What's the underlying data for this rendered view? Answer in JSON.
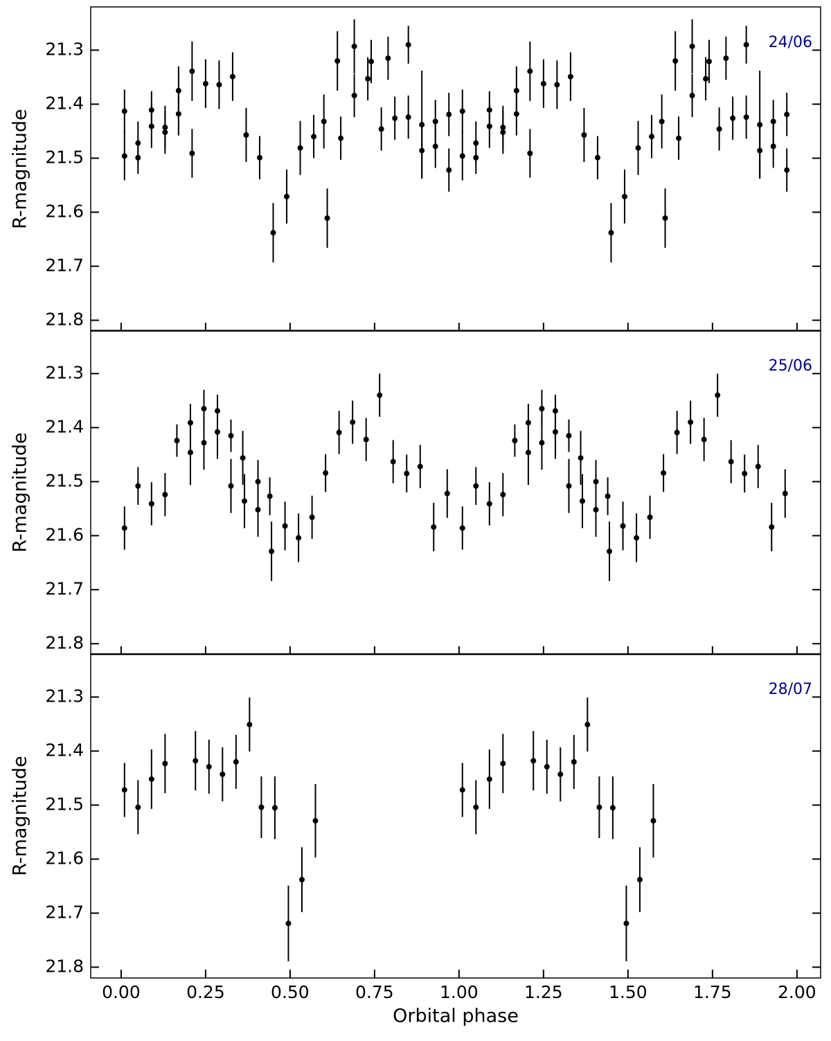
{
  "chart_data": [
    {
      "type": "scatter",
      "title": "24/06",
      "ylabel": "R-magnitude",
      "color": "#000000",
      "title_color": "#00008b",
      "xlim": [
        -0.09,
        2.07
      ],
      "ylim": [
        21.22,
        21.82
      ],
      "yticks": [
        21.3,
        21.4,
        21.5,
        21.6,
        21.7,
        21.8
      ],
      "y_inverted": true,
      "x": [
        0.01,
        0.01,
        0.05,
        0.05,
        0.09,
        0.09,
        0.13,
        0.13,
        0.17,
        0.17,
        0.21,
        0.21,
        0.25,
        0.29,
        0.33,
        0.37,
        0.41,
        0.45,
        0.49,
        0.53,
        0.57,
        0.6,
        0.61,
        0.64,
        0.65,
        0.69,
        0.69,
        0.73,
        0.74,
        0.77,
        0.79,
        0.81,
        0.85,
        0.85,
        0.89,
        0.89,
        0.93,
        0.93,
        0.97,
        0.97,
        1.01,
        1.01,
        1.05,
        1.05,
        1.09,
        1.09,
        1.13,
        1.13,
        1.17,
        1.17,
        1.21,
        1.21,
        1.25,
        1.29,
        1.33,
        1.37,
        1.41,
        1.45,
        1.49,
        1.53,
        1.57,
        1.6,
        1.61,
        1.64,
        1.65,
        1.69,
        1.69,
        1.73,
        1.74,
        1.77,
        1.79,
        1.81,
        1.85,
        1.85,
        1.89,
        1.89,
        1.93,
        1.93,
        1.97,
        1.97
      ],
      "values": [
        21.496,
        21.413,
        21.499,
        21.472,
        21.441,
        21.411,
        21.443,
        21.452,
        21.375,
        21.418,
        21.339,
        21.491,
        21.362,
        21.364,
        21.349,
        21.457,
        21.499,
        21.638,
        21.571,
        21.481,
        21.46,
        21.432,
        21.611,
        21.32,
        21.463,
        21.293,
        21.384,
        21.353,
        21.321,
        21.446,
        21.315,
        21.426,
        21.29,
        21.424,
        21.438,
        21.486,
        21.432,
        21.478,
        21.419,
        21.522,
        21.496,
        21.413,
        21.499,
        21.472,
        21.441,
        21.411,
        21.443,
        21.452,
        21.375,
        21.418,
        21.339,
        21.491,
        21.362,
        21.364,
        21.349,
        21.457,
        21.499,
        21.638,
        21.571,
        21.481,
        21.46,
        21.432,
        21.611,
        21.32,
        21.463,
        21.293,
        21.384,
        21.353,
        21.321,
        21.446,
        21.315,
        21.426,
        21.29,
        21.424,
        21.438,
        21.486,
        21.432,
        21.478,
        21.419,
        21.522
      ],
      "errors": [
        0.045,
        0.04,
        0.03,
        0.04,
        0.04,
        0.035,
        0.04,
        0.04,
        0.045,
        0.04,
        0.055,
        0.045,
        0.045,
        0.045,
        0.045,
        0.05,
        0.04,
        0.055,
        0.05,
        0.05,
        0.04,
        0.05,
        0.055,
        0.055,
        0.04,
        0.05,
        0.04,
        0.04,
        0.04,
        0.04,
        0.04,
        0.04,
        0.035,
        0.04,
        0.1,
        0.05,
        0.04,
        0.04,
        0.04,
        0.04,
        0.045,
        0.04,
        0.03,
        0.04,
        0.04,
        0.035,
        0.04,
        0.04,
        0.045,
        0.04,
        0.055,
        0.045,
        0.045,
        0.045,
        0.045,
        0.05,
        0.04,
        0.055,
        0.05,
        0.05,
        0.04,
        0.05,
        0.055,
        0.055,
        0.04,
        0.05,
        0.04,
        0.04,
        0.04,
        0.04,
        0.04,
        0.04,
        0.035,
        0.04,
        0.1,
        0.05,
        0.04,
        0.04,
        0.04,
        0.04
      ]
    },
    {
      "type": "scatter",
      "title": "25/06",
      "ylabel": "R-magnitude",
      "color": "#000000",
      "title_color": "#00008b",
      "xlim": [
        -0.09,
        2.07
      ],
      "ylim": [
        21.22,
        21.82
      ],
      "yticks": [
        21.3,
        21.4,
        21.5,
        21.6,
        21.7,
        21.8
      ],
      "y_inverted": true,
      "x": [
        0.01,
        0.05,
        0.09,
        0.13,
        0.165,
        0.205,
        0.205,
        0.245,
        0.245,
        0.285,
        0.285,
        0.325,
        0.325,
        0.36,
        0.365,
        0.405,
        0.405,
        0.44,
        0.445,
        0.485,
        0.525,
        0.565,
        0.605,
        0.645,
        0.685,
        0.725,
        0.765,
        0.805,
        0.845,
        0.885,
        0.925,
        0.965,
        1.01,
        1.05,
        1.09,
        1.13,
        1.165,
        1.205,
        1.205,
        1.245,
        1.245,
        1.285,
        1.285,
        1.325,
        1.325,
        1.36,
        1.365,
        1.405,
        1.405,
        1.44,
        1.445,
        1.485,
        1.525,
        1.565,
        1.605,
        1.645,
        1.685,
        1.725,
        1.765,
        1.805,
        1.845,
        1.885,
        1.925,
        1.965
      ],
      "values": [
        21.586,
        21.508,
        21.541,
        21.524,
        21.424,
        21.391,
        21.446,
        21.365,
        21.428,
        21.369,
        21.408,
        21.415,
        21.508,
        21.456,
        21.536,
        21.5,
        21.552,
        21.527,
        21.629,
        21.582,
        21.604,
        21.566,
        21.484,
        21.409,
        21.39,
        21.422,
        21.34,
        21.463,
        21.485,
        21.472,
        21.584,
        21.522,
        21.586,
        21.508,
        21.541,
        21.524,
        21.424,
        21.391,
        21.446,
        21.365,
        21.428,
        21.369,
        21.408,
        21.415,
        21.508,
        21.456,
        21.536,
        21.5,
        21.552,
        21.527,
        21.629,
        21.582,
        21.604,
        21.566,
        21.484,
        21.409,
        21.39,
        21.422,
        21.34,
        21.463,
        21.485,
        21.472,
        21.584,
        21.522
      ],
      "errors": [
        0.04,
        0.035,
        0.04,
        0.04,
        0.03,
        0.035,
        0.06,
        0.035,
        0.05,
        0.03,
        0.05,
        0.03,
        0.05,
        0.05,
        0.05,
        0.04,
        0.05,
        0.035,
        0.055,
        0.045,
        0.045,
        0.04,
        0.035,
        0.04,
        0.04,
        0.04,
        0.04,
        0.04,
        0.035,
        0.04,
        0.045,
        0.045,
        0.04,
        0.035,
        0.04,
        0.04,
        0.03,
        0.035,
        0.06,
        0.035,
        0.05,
        0.03,
        0.05,
        0.03,
        0.05,
        0.05,
        0.05,
        0.04,
        0.05,
        0.035,
        0.055,
        0.045,
        0.045,
        0.04,
        0.035,
        0.04,
        0.04,
        0.04,
        0.04,
        0.04,
        0.035,
        0.04,
        0.045,
        0.045
      ]
    },
    {
      "type": "scatter",
      "title": "28/07",
      "ylabel": "R-magnitude",
      "xlabel": "Orbital phase",
      "color": "#000000",
      "title_color": "#00008b",
      "xlim": [
        -0.09,
        2.07
      ],
      "ylim": [
        21.22,
        21.82
      ],
      "yticks": [
        21.3,
        21.4,
        21.5,
        21.6,
        21.7,
        21.8
      ],
      "y_inverted": true,
      "xticks": [
        {
          "value": 0,
          "label": "0.00"
        },
        {
          "value": 0.25,
          "label": "0.25"
        },
        {
          "value": 0.5,
          "label": "0.50"
        },
        {
          "value": 0.75,
          "label": "0.75"
        },
        {
          "value": 1,
          "label": "1.00"
        },
        {
          "value": 1.25,
          "label": "1.25"
        },
        {
          "value": 1.5,
          "label": "1.50"
        },
        {
          "value": 1.75,
          "label": "1.75"
        },
        {
          "value": 2,
          "label": "2.00"
        }
      ],
      "x": [
        0.01,
        0.05,
        0.09,
        0.13,
        0.22,
        0.26,
        0.3,
        0.34,
        0.38,
        0.415,
        0.455,
        0.495,
        0.535,
        0.575,
        1.01,
        1.05,
        1.09,
        1.13,
        1.22,
        1.26,
        1.3,
        1.34,
        1.38,
        1.415,
        1.455,
        1.495,
        1.535,
        1.575
      ],
      "values": [
        21.472,
        21.504,
        21.452,
        21.423,
        21.418,
        21.429,
        21.443,
        21.42,
        21.351,
        21.504,
        21.505,
        21.719,
        21.638,
        21.529,
        21.472,
        21.504,
        21.452,
        21.423,
        21.418,
        21.429,
        21.443,
        21.42,
        21.351,
        21.504,
        21.505,
        21.719,
        21.638,
        21.529
      ],
      "errors": [
        0.05,
        0.05,
        0.055,
        0.055,
        0.055,
        0.05,
        0.05,
        0.05,
        0.05,
        0.057,
        0.058,
        0.07,
        0.06,
        0.068,
        0.05,
        0.05,
        0.055,
        0.055,
        0.055,
        0.05,
        0.05,
        0.05,
        0.05,
        0.057,
        0.058,
        0.07,
        0.06,
        0.068
      ]
    }
  ]
}
